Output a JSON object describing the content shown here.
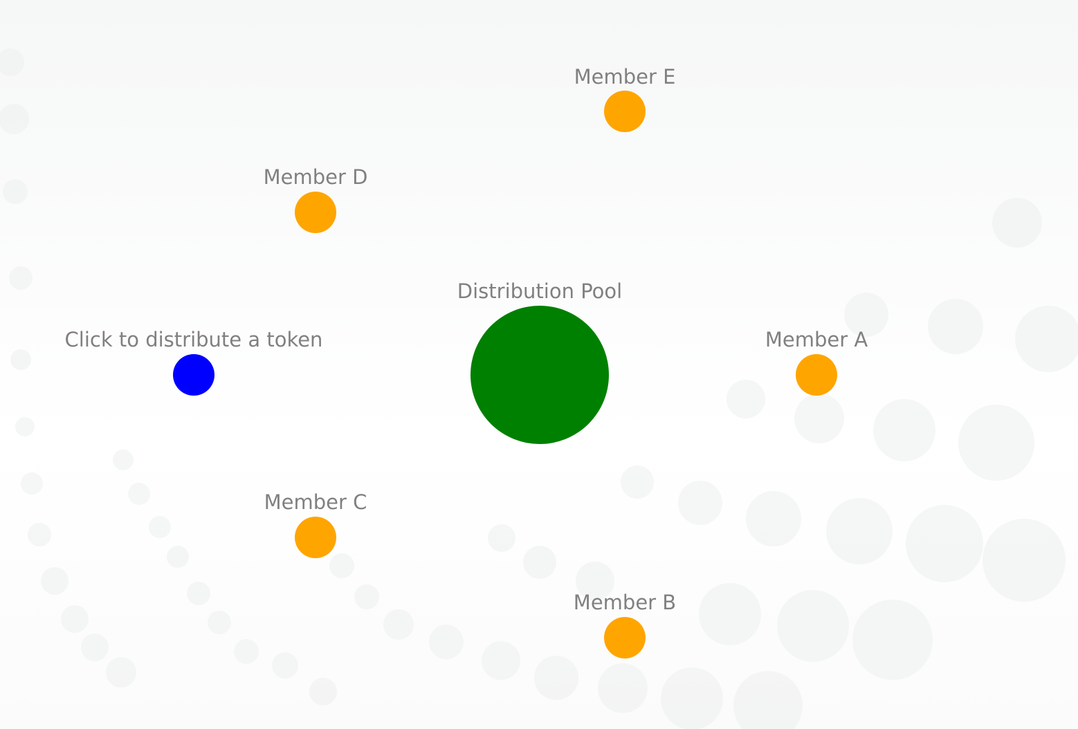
{
  "pool": {
    "label": "Distribution Pool"
  },
  "source": {
    "label": "Click to distribute a token"
  },
  "members": [
    {
      "label": "Member A"
    },
    {
      "label": "Member B"
    },
    {
      "label": "Member C"
    },
    {
      "label": "Member D"
    },
    {
      "label": "Member E"
    }
  ]
}
